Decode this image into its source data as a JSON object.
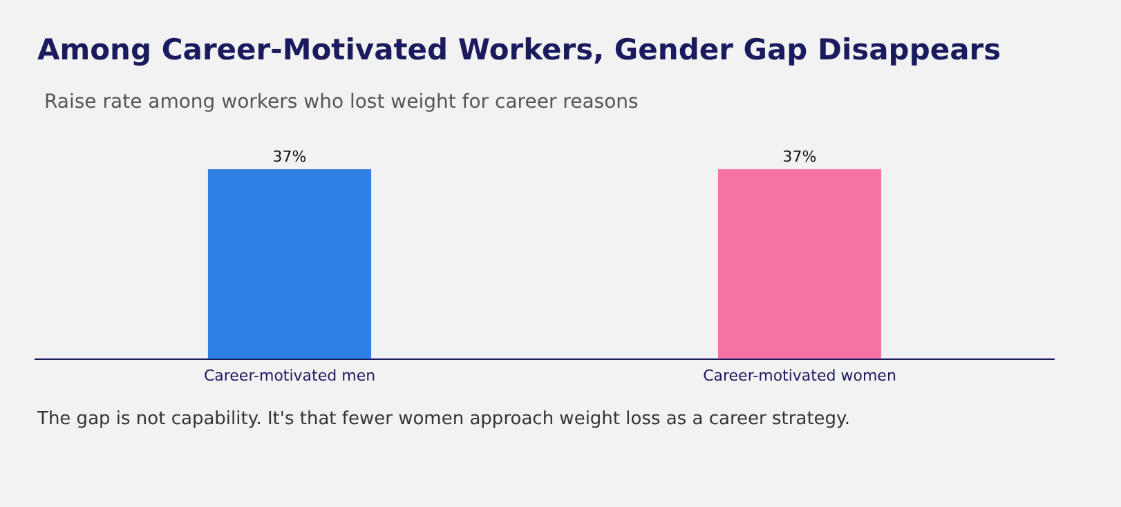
{
  "chart_data": {
    "type": "bar",
    "title": "Among Career-Motivated Workers, Gender Gap Disappears",
    "subtitle": "Raise rate among workers who lost weight for career reasons",
    "categories": [
      "Career-motivated men",
      "Career-motivated women"
    ],
    "values": [
      37,
      37
    ],
    "colors": [
      "#2f80e4",
      "#f472a4"
    ],
    "tick_labels": "x",
    "value_labels": [
      "37%",
      "37%"
    ],
    "annotations": [
      "The gap is not capability. It's that fewer women approach weight loss as a career strategy."
    ],
    "grid": false,
    "legend": false
  }
}
